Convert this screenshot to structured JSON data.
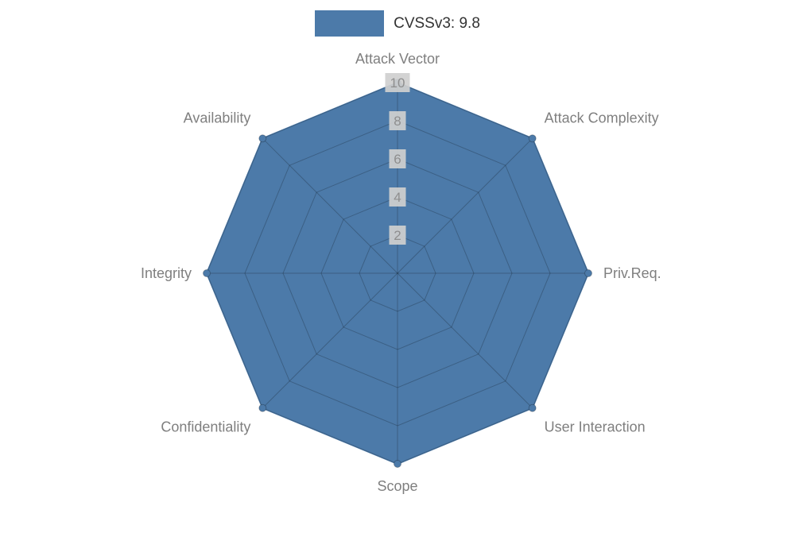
{
  "legend": {
    "label": "CVSSv3: 9.8"
  },
  "chart_data": {
    "type": "radar",
    "title": "CVSSv3: 9.8",
    "categories": [
      "Attack Vector",
      "Attack Complexity",
      "Priv.Req.",
      "User Interaction",
      "Scope",
      "Confidentiality",
      "Integrity",
      "Availability"
    ],
    "series": [
      {
        "name": "CVSSv3: 9.8",
        "values": [
          10,
          10,
          10,
          10,
          10,
          10,
          10,
          10
        ]
      }
    ],
    "radial_ticks": [
      2,
      4,
      6,
      8,
      10
    ],
    "rlim": [
      0,
      10
    ],
    "fill_color": "#4c7aa9",
    "grid_color": "rgba(0,0,0,0.22)",
    "tick_bg_color": "#cfcfcf",
    "tick_text_color": "#8e8e8e",
    "label_color": "#7f7f7f",
    "legend_position": "top",
    "grid": true
  }
}
